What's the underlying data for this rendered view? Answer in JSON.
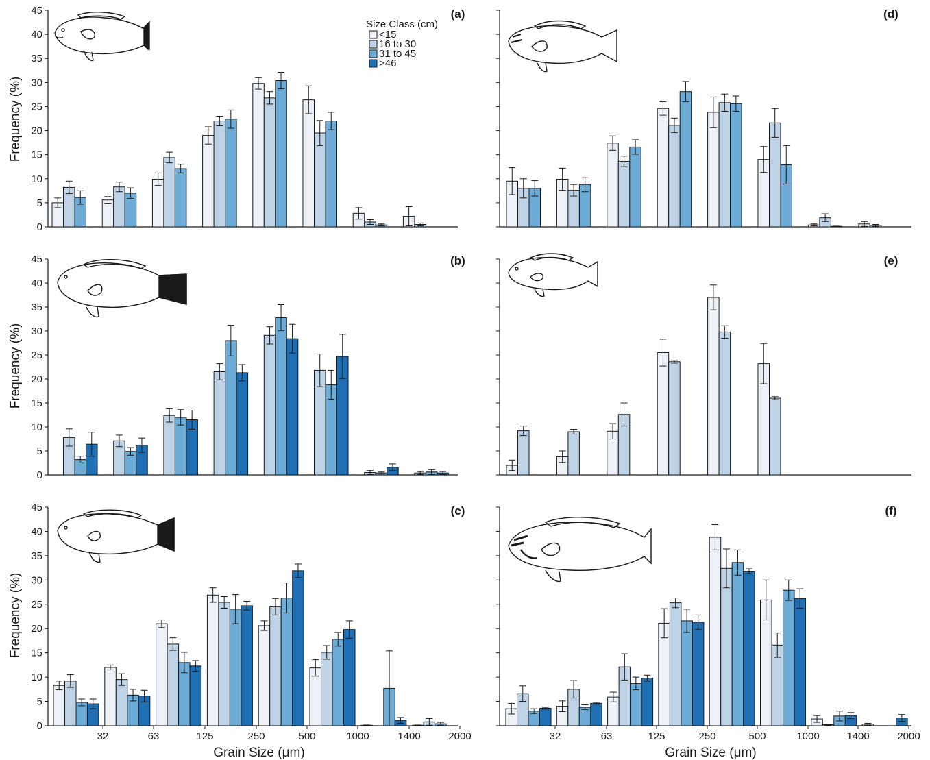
{
  "colors": {
    "lt15": "#EDF1F7",
    "c16_30": "#BFD3E6",
    "c31_45": "#6DACD6",
    "gt46": "#1F6FB5",
    "axis": "#1a1a1a",
    "bar_stroke": "#1a1a1a"
  },
  "legend": {
    "title": "Size Class (cm)",
    "items": [
      {
        "label": "<15",
        "color": "#EDF1F7"
      },
      {
        "label": "16 to 30",
        "color": "#BFD3E6"
      },
      {
        "label": "31 to 45",
        "color": "#6DACD6"
      },
      {
        "label": ">46",
        "color": "#1F6FB5"
      }
    ]
  },
  "chart_data": [
    {
      "panel": "(a)",
      "type": "bar",
      "ylabel": "Frequency (%)",
      "xlabel": "",
      "ylim": [
        0,
        45
      ],
      "yticks": [
        "0",
        "5",
        "10",
        "15",
        "20",
        "25",
        "30",
        "35",
        "40",
        "45"
      ],
      "xticks": [],
      "series": [
        {
          "name": "<15",
          "values": [
            5.0,
            5.6,
            9.9,
            19.0,
            29.8,
            26.4,
            2.8,
            2.2
          ],
          "errors": [
            1.0,
            0.7,
            1.3,
            1.8,
            1.2,
            2.9,
            1.2,
            2.0
          ]
        },
        {
          "name": "16 to 30",
          "values": [
            8.2,
            8.3,
            14.4,
            22.0,
            26.8,
            19.5,
            1.0,
            0.5
          ],
          "errors": [
            1.3,
            1.0,
            1.1,
            1.0,
            1.3,
            2.6,
            0.5,
            0.3
          ]
        },
        {
          "name": "31 to 45",
          "values": [
            6.1,
            7.0,
            12.1,
            22.4,
            30.4,
            22.0,
            0.4,
            null
          ],
          "errors": [
            1.4,
            1.1,
            0.9,
            1.9,
            1.7,
            1.8,
            0.2,
            null
          ]
        },
        {
          "name": ">46",
          "values": [
            null,
            null,
            null,
            null,
            null,
            null,
            null,
            null
          ],
          "errors": [
            null,
            null,
            null,
            null,
            null,
            null,
            null,
            null
          ]
        }
      ]
    },
    {
      "panel": "(b)",
      "type": "bar",
      "ylabel": "Frequency (%)",
      "xlabel": "",
      "ylim": [
        0,
        45
      ],
      "yticks": [
        "0",
        "5",
        "10",
        "15",
        "20",
        "25",
        "30",
        "35",
        "40",
        "45"
      ],
      "xticks": [],
      "series": [
        {
          "name": "<15",
          "values": [
            null,
            null,
            null,
            null,
            null,
            null,
            null,
            null
          ],
          "errors": [
            null,
            null,
            null,
            null,
            null,
            null,
            null,
            null
          ]
        },
        {
          "name": "16 to 30",
          "values": [
            7.8,
            7.1,
            12.4,
            21.5,
            29.1,
            21.8,
            0.5,
            0.4
          ],
          "errors": [
            1.8,
            1.2,
            1.4,
            1.7,
            1.8,
            3.4,
            0.4,
            0.3
          ]
        },
        {
          "name": "31 to 45",
          "values": [
            3.2,
            4.9,
            12.0,
            28.0,
            32.8,
            18.8,
            0.4,
            0.6
          ],
          "errors": [
            0.7,
            0.8,
            1.6,
            3.2,
            2.7,
            3.0,
            0.2,
            0.5
          ]
        },
        {
          "name": ">46",
          "values": [
            6.4,
            6.2,
            11.5,
            21.3,
            28.4,
            24.7,
            1.6,
            0.4
          ],
          "errors": [
            2.5,
            1.5,
            2.0,
            1.7,
            3.0,
            4.6,
            0.7,
            0.3
          ]
        }
      ]
    },
    {
      "panel": "(c)",
      "type": "bar",
      "ylabel": "Frequency (%)",
      "xlabel": "Grain Size (μm)",
      "ylim": [
        0,
        45
      ],
      "yticks": [
        "0",
        "5",
        "10",
        "15",
        "20",
        "25",
        "30",
        "35",
        "40",
        "45"
      ],
      "xticks": [
        "32",
        "63",
        "125",
        "250",
        "500",
        "1000",
        "1400",
        "2000"
      ],
      "series": [
        {
          "name": "<15",
          "values": [
            8.3,
            12.0,
            21.0,
            26.9,
            20.6,
            11.9,
            0.1,
            0.1
          ],
          "errors": [
            0.9,
            0.5,
            0.8,
            1.5,
            1.0,
            1.7,
            0.05,
            0.05
          ]
        },
        {
          "name": "16 to 30",
          "values": [
            9.2,
            9.5,
            16.8,
            25.4,
            24.5,
            15.1,
            null,
            0.8
          ],
          "errors": [
            1.3,
            1.2,
            1.3,
            1.2,
            1.7,
            1.4,
            null,
            0.7
          ]
        },
        {
          "name": "31 to 45",
          "values": [
            4.8,
            6.3,
            13.0,
            24.0,
            26.3,
            17.8,
            7.7,
            0.4
          ],
          "errors": [
            0.7,
            1.2,
            2.1,
            3.0,
            3.1,
            1.4,
            7.7,
            0.3
          ]
        },
        {
          "name": ">46",
          "values": [
            4.5,
            6.1,
            12.3,
            24.7,
            31.9,
            19.8,
            1.1,
            null
          ],
          "errors": [
            1.0,
            1.2,
            1.1,
            0.9,
            1.4,
            1.8,
            0.6,
            null
          ]
        }
      ]
    },
    {
      "panel": "(d)",
      "type": "bar",
      "ylabel": "",
      "xlabel": "",
      "ylim": [
        0,
        45
      ],
      "yticks": [],
      "xticks": [],
      "series": [
        {
          "name": "<15",
          "values": [
            9.5,
            9.9,
            17.4,
            24.6,
            23.8,
            14.0,
            0.4,
            0.6
          ],
          "errors": [
            2.8,
            2.3,
            1.5,
            1.4,
            3.2,
            2.7,
            0.2,
            0.5
          ]
        },
        {
          "name": "16 to 30",
          "values": [
            8.0,
            7.6,
            13.6,
            21.1,
            25.8,
            21.6,
            1.9,
            0.3
          ],
          "errors": [
            2.0,
            1.2,
            1.1,
            1.5,
            1.8,
            3.0,
            0.8,
            0.2
          ]
        },
        {
          "name": "31 to 45",
          "values": [
            8.0,
            8.8,
            16.6,
            28.1,
            25.6,
            12.9,
            0.1,
            null
          ],
          "errors": [
            1.6,
            1.5,
            1.5,
            2.1,
            1.6,
            4.0,
            0.05,
            null
          ]
        },
        {
          "name": ">46",
          "values": [
            null,
            null,
            null,
            null,
            null,
            null,
            null,
            null
          ],
          "errors": [
            null,
            null,
            null,
            null,
            null,
            null,
            null,
            null
          ]
        }
      ]
    },
    {
      "panel": "(e)",
      "type": "bar",
      "ylabel": "",
      "xlabel": "",
      "ylim": [
        0,
        45
      ],
      "yticks": [],
      "xticks": [],
      "series": [
        {
          "name": "<15",
          "values": [
            2.0,
            3.8,
            9.1,
            25.5,
            37.0,
            23.2,
            null,
            null
          ],
          "errors": [
            1.1,
            1.2,
            1.6,
            2.8,
            2.6,
            4.2,
            null,
            null
          ]
        },
        {
          "name": "16 to 30",
          "values": [
            9.2,
            9.0,
            12.6,
            23.6,
            29.8,
            16.0,
            null,
            null
          ],
          "errors": [
            1.0,
            0.5,
            2.4,
            0.3,
            1.3,
            0.3,
            null,
            null
          ]
        },
        {
          "name": "31 to 45",
          "values": [
            null,
            null,
            null,
            null,
            null,
            null,
            null,
            null
          ],
          "errors": [
            null,
            null,
            null,
            null,
            null,
            null,
            null,
            null
          ]
        },
        {
          "name": ">46",
          "values": [
            null,
            null,
            null,
            null,
            null,
            null,
            null,
            null
          ],
          "errors": [
            null,
            null,
            null,
            null,
            null,
            null,
            null,
            null
          ]
        }
      ]
    },
    {
      "panel": "(f)",
      "type": "bar",
      "ylabel": "",
      "xlabel": "Grain Size (μm)",
      "ylim": [
        0,
        45
      ],
      "yticks": [],
      "xticks": [
        "32",
        "63",
        "125",
        "250",
        "500",
        "1000",
        "1400",
        "2000"
      ],
      "series": [
        {
          "name": "<15",
          "values": [
            3.5,
            4.0,
            5.9,
            21.1,
            38.8,
            25.9,
            1.4,
            0.3
          ],
          "errors": [
            1.1,
            1.1,
            1.0,
            3.0,
            2.6,
            4.1,
            0.7,
            0.2
          ]
        },
        {
          "name": "16 to 30",
          "values": [
            6.6,
            7.5,
            12.1,
            25.3,
            32.4,
            16.6,
            0.2,
            null
          ],
          "errors": [
            1.6,
            1.8,
            2.7,
            1.0,
            4.0,
            2.5,
            0.1,
            null
          ]
        },
        {
          "name": "31 to 45",
          "values": [
            3.0,
            3.8,
            8.7,
            21.6,
            33.6,
            27.9,
            2.0,
            null
          ],
          "errors": [
            0.5,
            0.5,
            1.3,
            2.4,
            2.6,
            2.1,
            1.0,
            null
          ]
        },
        {
          "name": ">46",
          "values": [
            3.6,
            4.6,
            9.8,
            21.3,
            31.8,
            26.2,
            2.1,
            1.6
          ],
          "errors": [
            0.2,
            0.2,
            0.6,
            1.5,
            0.5,
            2.0,
            0.6,
            0.7
          ]
        }
      ]
    }
  ]
}
